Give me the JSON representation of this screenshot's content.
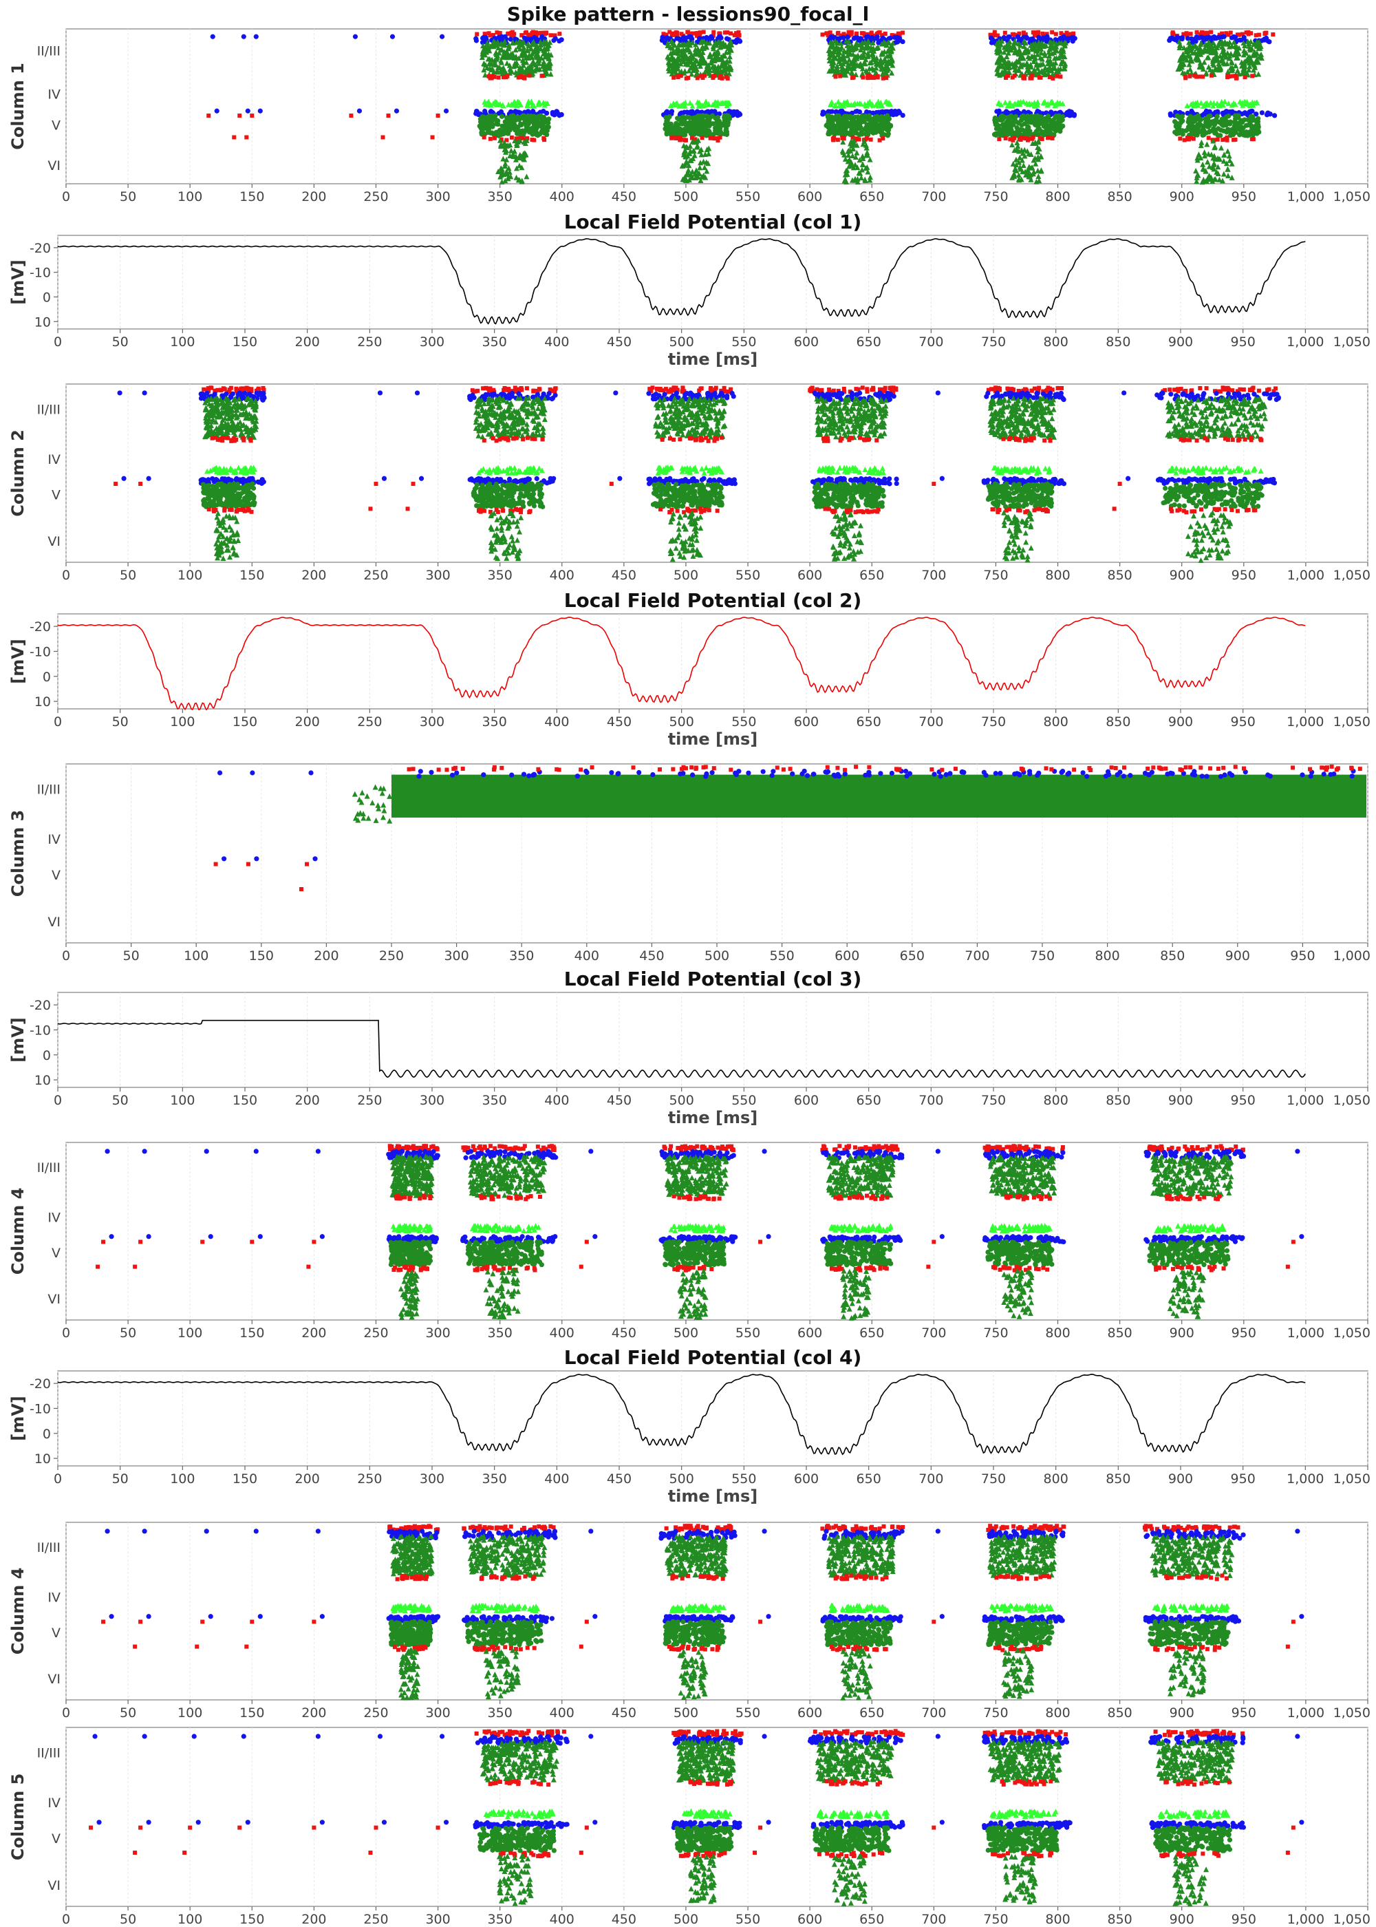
{
  "figure": {
    "title": "Spike pattern - lessions90_focal_l"
  },
  "colors": {
    "superficial_excitatory": "#228b22",
    "layer4_excitatory": "#33ff33",
    "inhibitory_fast": "#1414ee",
    "inhibitory_other": "#ee1414",
    "lfp_trace_default": "#000000",
    "lfp_trace_col2": "#ee0000",
    "frame": "#999999",
    "grid": "#e6e6e6"
  },
  "chart_data": [
    {
      "type": "scatter",
      "ylabel": "Column 1",
      "rows": [
        "II/III",
        "IV",
        "V",
        "VI"
      ],
      "x_ticks": [
        "0",
        "50",
        "100",
        "150",
        "200",
        "250",
        "300",
        "350",
        "400",
        "450",
        "500",
        "550",
        "600",
        "650",
        "700",
        "750",
        "800",
        "850",
        "900",
        "950",
        "1,000",
        "1,050"
      ],
      "xlim": [
        0,
        1000
      ],
      "bursts_ms": [
        [
          330,
          400
        ],
        [
          480,
          545
        ],
        [
          610,
          675
        ],
        [
          745,
          815
        ],
        [
          890,
          975
        ]
      ],
      "sparse_events_ms": [
        115,
        140,
        150,
        230,
        260,
        300
      ]
    },
    {
      "type": "line",
      "title": "Local Field Potential (col 1)",
      "xlabel": "time [ms]",
      "ylabel": "[mV]",
      "y_ticks": [
        "-20",
        "-10",
        "0",
        "10"
      ],
      "ylim": [
        -25,
        13
      ],
      "x_ticks": [
        "0",
        "50",
        "100",
        "150",
        "200",
        "250",
        "300",
        "350",
        "400",
        "450",
        "500",
        "550",
        "600",
        "650",
        "700",
        "750",
        "800",
        "850",
        "900",
        "950",
        "1,000",
        "1,050"
      ],
      "xlim": [
        0,
        1050
      ],
      "baseline_mV": -20.5,
      "troughs": [
        [
          355,
          9.5
        ],
        [
          498,
          6
        ],
        [
          635,
          6.5
        ],
        [
          778,
          7
        ],
        [
          940,
          5
        ]
      ]
    },
    {
      "type": "scatter",
      "ylabel": "Column 2",
      "rows": [
        "II/III",
        "IV",
        "V",
        "VI"
      ],
      "x_ticks": [
        "0",
        "50",
        "100",
        "150",
        "200",
        "250",
        "300",
        "350",
        "400",
        "450",
        "500",
        "550",
        "600",
        "650",
        "700",
        "750",
        "800",
        "850",
        "900",
        "950",
        "1,000",
        "1,050"
      ],
      "xlim": [
        0,
        1000
      ],
      "bursts_ms": [
        [
          108,
          160
        ],
        [
          325,
          395
        ],
        [
          470,
          540
        ],
        [
          600,
          670
        ],
        [
          740,
          805
        ],
        [
          880,
          980
        ]
      ],
      "sparse_events_ms": [
        40,
        60,
        250,
        280,
        440,
        700,
        850
      ]
    },
    {
      "type": "line",
      "title": "Local Field Potential (col 2)",
      "xlabel": "time [ms]",
      "ylabel": "[mV]",
      "y_ticks": [
        "-20",
        "-10",
        "0",
        "10"
      ],
      "ylim": [
        -25,
        13
      ],
      "x_ticks": [
        "0",
        "50",
        "100",
        "150",
        "200",
        "250",
        "300",
        "350",
        "400",
        "450",
        "500",
        "550",
        "600",
        "650",
        "700",
        "750",
        "800",
        "850",
        "900",
        "950",
        "1,000",
        "1,050"
      ],
      "xlim": [
        0,
        1050
      ],
      "baseline_mV": -20.5,
      "troughs": [
        [
          112,
          12
        ],
        [
          340,
          7
        ],
        [
          482,
          9
        ],
        [
          625,
          5
        ],
        [
          760,
          4
        ],
        [
          905,
          3
        ]
      ]
    },
    {
      "type": "scatter",
      "ylabel": "Column 3",
      "rows": [
        "II/III",
        "IV",
        "V",
        "VI"
      ],
      "x_ticks": [
        "0",
        "50",
        "100",
        "150",
        "200",
        "250",
        "300",
        "350",
        "400",
        "450",
        "500",
        "550",
        "600",
        "650",
        "700",
        "750",
        "800",
        "850",
        "900",
        "950",
        "1,000"
      ],
      "xlim": [
        0,
        1000
      ],
      "continuous_from_ms": 250,
      "sparse_events_ms": [
        115,
        140,
        185
      ]
    },
    {
      "type": "line",
      "title": "Local Field Potential (col 3)",
      "xlabel": "time [ms]",
      "ylabel": "[mV]",
      "y_ticks": [
        "-20",
        "-10",
        "0",
        "10"
      ],
      "ylim": [
        -25,
        13
      ],
      "x_ticks": [
        "0",
        "50",
        "100",
        "150",
        "200",
        "250",
        "300",
        "350",
        "400",
        "450",
        "500",
        "550",
        "600",
        "650",
        "700",
        "750",
        "800",
        "850",
        "900",
        "950",
        "1,000",
        "1,050"
      ],
      "xlim": [
        0,
        1050
      ],
      "baseline_mV": -12.5,
      "drop_at_ms": 257,
      "oscillation_level_mV": 7.5
    },
    {
      "type": "scatter",
      "ylabel": "Column 4",
      "rows": [
        "II/III",
        "IV",
        "V",
        "VI"
      ],
      "x_ticks": [
        "0",
        "50",
        "100",
        "150",
        "200",
        "250",
        "300",
        "350",
        "400",
        "450",
        "500",
        "550",
        "600",
        "650",
        "700",
        "750",
        "800",
        "850",
        "900",
        "950",
        "1,000",
        "1,050"
      ],
      "xlim": [
        0,
        1000
      ],
      "bursts_ms": [
        [
          260,
          300
        ],
        [
          320,
          395
        ],
        [
          480,
          540
        ],
        [
          610,
          675
        ],
        [
          740,
          805
        ],
        [
          870,
          950
        ]
      ],
      "sparse_events_ms": [
        30,
        60,
        110,
        150,
        200,
        420,
        560,
        700,
        990
      ]
    },
    {
      "type": "line",
      "title": "Local Field Potential (col 4)",
      "xlabel": "time [ms]",
      "ylabel": "[mV]",
      "y_ticks": [
        "-20",
        "-10",
        "0",
        "10"
      ],
      "ylim": [
        -25,
        13
      ],
      "x_ticks": [
        "0",
        "50",
        "100",
        "150",
        "200",
        "250",
        "300",
        "350",
        "400",
        "450",
        "500",
        "550",
        "600",
        "650",
        "700",
        "750",
        "800",
        "850",
        "900",
        "950",
        "1,000",
        "1,050"
      ],
      "xlim": [
        0,
        1050
      ],
      "baseline_mV": -20.5,
      "troughs": [
        [
          350,
          5.5
        ],
        [
          490,
          3.5
        ],
        [
          622,
          7
        ],
        [
          758,
          6.5
        ],
        [
          895,
          6
        ]
      ]
    },
    {
      "type": "scatter",
      "ylabel": "Column 4",
      "rows": [
        "II/III",
        "IV",
        "V",
        "VI"
      ],
      "x_ticks": [
        "0",
        "50",
        "100",
        "150",
        "200",
        "250",
        "300",
        "350",
        "400",
        "450",
        "500",
        "550",
        "600",
        "650",
        "700",
        "750",
        "800",
        "850",
        "900",
        "950",
        "1,000",
        "1,050"
      ],
      "xlim": [
        0,
        1000
      ],
      "bursts_ms": [
        [
          260,
          300
        ],
        [
          320,
          395
        ],
        [
          480,
          540
        ],
        [
          610,
          675
        ],
        [
          740,
          805
        ],
        [
          870,
          950
        ]
      ],
      "sparse_events_ms": [
        30,
        60,
        110,
        150,
        200,
        420,
        560,
        700,
        990
      ]
    },
    {
      "type": "scatter",
      "ylabel": "Column 5",
      "rows": [
        "II/III",
        "IV",
        "V",
        "VI"
      ],
      "x_ticks": [
        "0",
        "50",
        "100",
        "150",
        "200",
        "250",
        "300",
        "350",
        "400",
        "450",
        "500",
        "550",
        "600",
        "650",
        "700",
        "750",
        "800",
        "850",
        "900",
        "950",
        "1,000",
        "1,050"
      ],
      "xlim": [
        0,
        1000
      ],
      "bursts_ms": [
        [
          330,
          405
        ],
        [
          490,
          545
        ],
        [
          600,
          675
        ],
        [
          740,
          810
        ],
        [
          875,
          950
        ]
      ],
      "sparse_events_ms": [
        20,
        60,
        100,
        140,
        200,
        250,
        300,
        420,
        560,
        700,
        990
      ]
    }
  ]
}
